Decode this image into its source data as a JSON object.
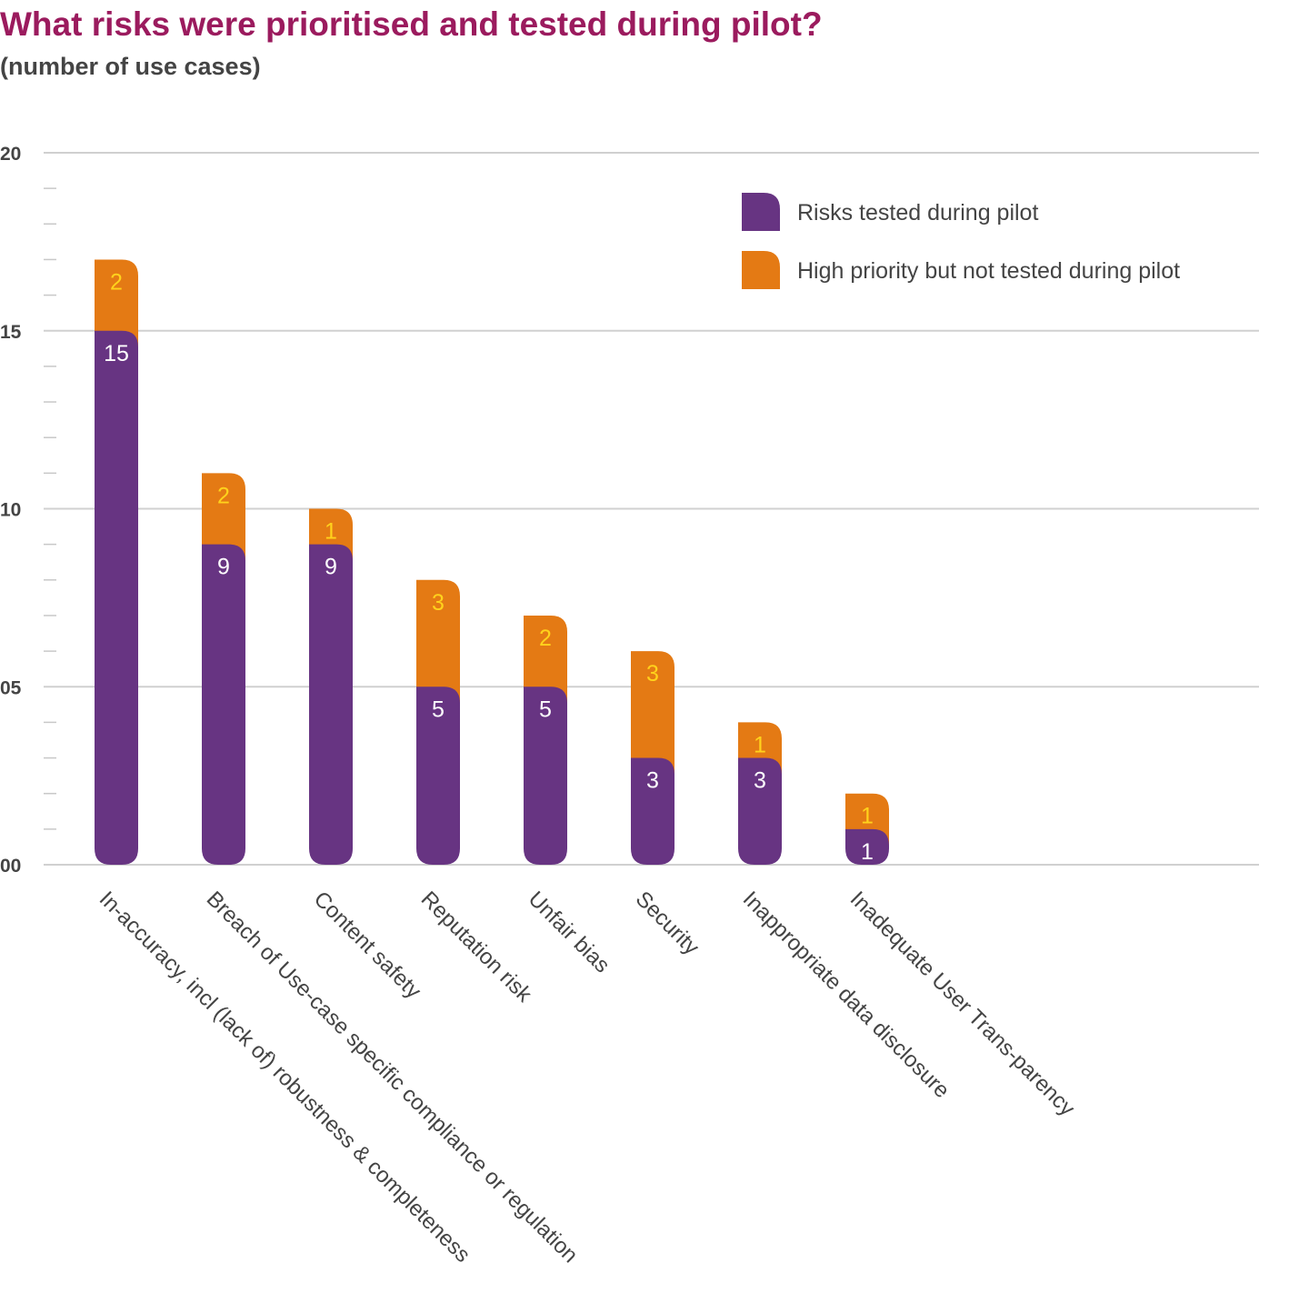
{
  "chart_data": {
    "type": "bar",
    "stacked": true,
    "title": "What risks were prioritised and tested during pilot?",
    "subtitle": "(number of use cases)",
    "xlabel": "",
    "ylabel": "",
    "ylim": [
      0,
      20
    ],
    "yticks": [
      "00",
      "05",
      "10",
      "15",
      "20"
    ],
    "grid": true,
    "legend_position": "top-right",
    "categories": [
      "In-accuracy, incl (lack of) robustness & completeness",
      "Breach of Use-case specific compliance or regulation",
      "Content safety",
      "Reputation risk",
      "Unfair bias",
      "Security",
      "Inappropriate data disclosure",
      "Inadequate User Trans-parency"
    ],
    "series": [
      {
        "name": "Risks tested during pilot",
        "color": "#673482",
        "label_color": "#ffffff",
        "values": [
          15,
          9,
          9,
          5,
          5,
          3,
          3,
          1
        ]
      },
      {
        "name": "High priority but not tested during pilot",
        "color": "#e47a14",
        "label_color": "#ffd21c",
        "values": [
          2,
          2,
          1,
          3,
          2,
          3,
          1,
          1
        ]
      }
    ]
  }
}
